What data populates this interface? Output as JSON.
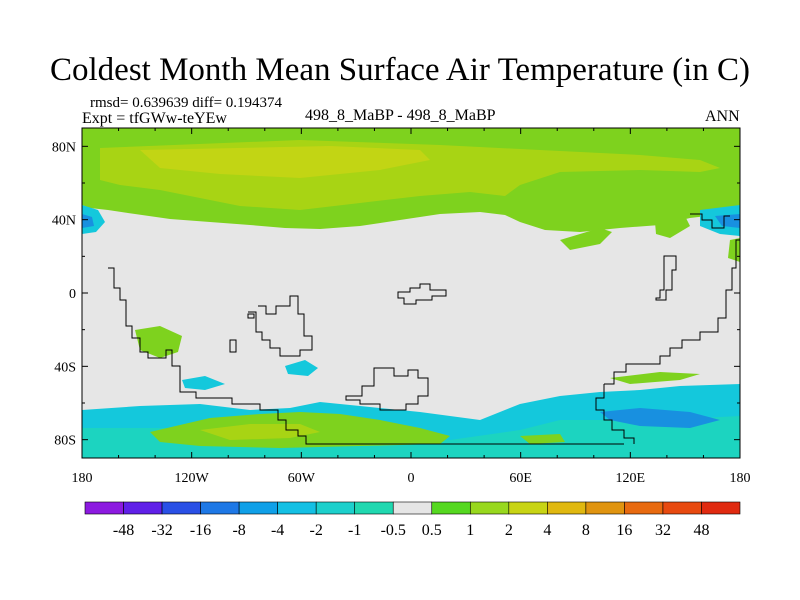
{
  "title": "Coldest Month Mean Surface Air Temperature (in C)",
  "stats_line": "rmsd= 0.639639  diff= 0.194374",
  "experiment_line": "Expt = tfGWw-teYEw",
  "comparison_label": "498_8_MaBP - 498_8_MaBP",
  "season_label": "ANN",
  "chart_data": {
    "type": "heatmap",
    "title": "Coldest Month Mean Surface Air Temperature (in C)",
    "x_axis": {
      "ticks": [
        "180",
        "120W",
        "60W",
        "0",
        "60E",
        "120E",
        "180"
      ],
      "range": [
        -180,
        180
      ]
    },
    "y_axis": {
      "ticks": [
        "80N",
        "40N",
        "0",
        "40S",
        "80S"
      ],
      "range": [
        -90,
        90
      ]
    },
    "colorbar": {
      "labels": [
        "-48",
        "-32",
        "-16",
        "-8",
        "-4",
        "-2",
        "-1",
        "-0.5",
        "0.5",
        "1",
        "2",
        "4",
        "8",
        "16",
        "32",
        "48"
      ],
      "colors": [
        "#8c1ae0",
        "#6020e8",
        "#2a50e6",
        "#1e78e6",
        "#10a0e8",
        "#14c0e4",
        "#1cd0cc",
        "#20d8b0",
        "#e6e6e6",
        "#55d820",
        "#98d81e",
        "#c8d414",
        "#e0b810",
        "#e09410",
        "#e86a10",
        "#e84a10",
        "#e02a10"
      ]
    }
  },
  "colors": {
    "green": "#7ed21e",
    "yellowgreen": "#a8d414",
    "cyan": "#14c8dc",
    "teal": "#1cd4c0",
    "gray": "#e6e6e6",
    "blue": "#1890e0"
  }
}
